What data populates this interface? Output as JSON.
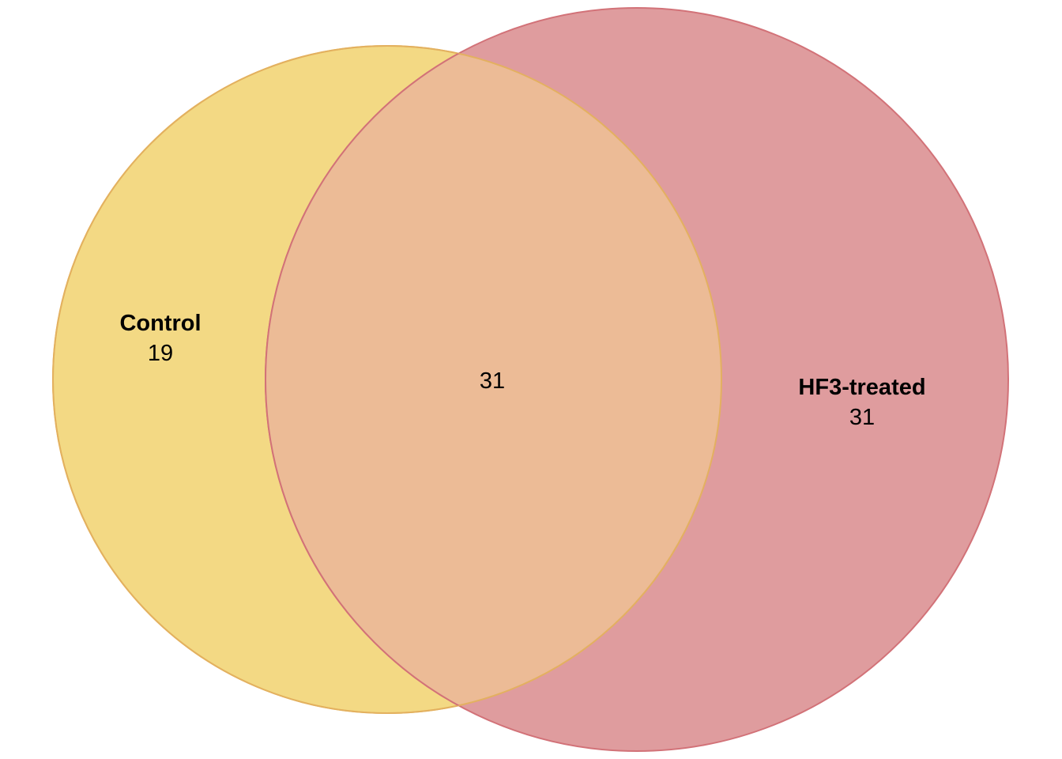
{
  "sets": [
    {
      "name": "Control",
      "only_count": "19",
      "color": "#F0D060"
    },
    {
      "name": "HF3-treated",
      "only_count": "31",
      "color": "#D88A8E"
    }
  ],
  "intersection": {
    "count": "31",
    "color": "#EBB994"
  }
}
